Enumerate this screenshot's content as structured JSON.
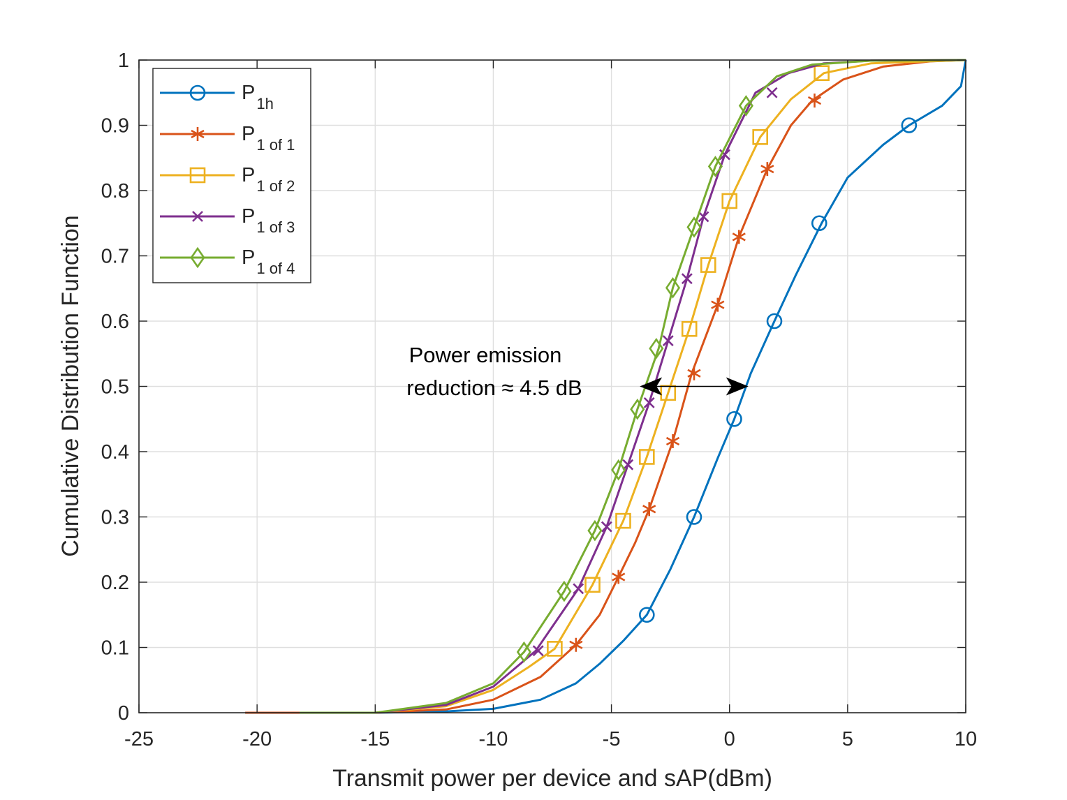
{
  "chart_data": {
    "type": "line",
    "xlabel": "Transmit power per device and sAP(dBm)",
    "ylabel": "Cumulative Distribution Function",
    "xlim": [
      -25,
      10
    ],
    "ylim": [
      0,
      1
    ],
    "grid": true,
    "x_ticks": [
      "-25",
      "-20",
      "-15",
      "-10",
      "-5",
      "0",
      "5",
      "10"
    ],
    "y_ticks": [
      "0",
      "0.1",
      "0.2",
      "0.3",
      "0.4",
      "0.5",
      "0.6",
      "0.7",
      "0.8",
      "0.9",
      "1"
    ],
    "legend_position": "top-left",
    "series": [
      {
        "name": "P 1h",
        "main": "P",
        "sub": "1h",
        "color": "#0072BD",
        "marker": "circle",
        "x": [
          -20.5,
          -15,
          -12,
          -10,
          -8,
          -6.5,
          -5.5,
          -4.5,
          -3.5,
          -2.5,
          -1.5,
          -0.5,
          0.2,
          0.9,
          1.9,
          2.8,
          3.9,
          5,
          6.5,
          7.6,
          9,
          9.8,
          10
        ],
        "y": [
          0,
          0,
          0.002,
          0.006,
          0.02,
          0.045,
          0.075,
          0.11,
          0.15,
          0.22,
          0.3,
          0.39,
          0.45,
          0.52,
          0.6,
          0.67,
          0.75,
          0.82,
          0.87,
          0.9,
          0.93,
          0.96,
          1.0
        ],
        "markers_x": [
          -3.5,
          -1.5,
          0.2,
          1.9,
          3.8,
          7.6
        ],
        "markers_y": [
          0.15,
          0.3,
          0.45,
          0.6,
          0.75,
          0.9
        ]
      },
      {
        "name": "P 1 of 1",
        "main": "P",
        "sub": "1 of 1",
        "color": "#D95319",
        "marker": "asterisk",
        "x": [
          -20.5,
          -15,
          -12,
          -10,
          -8,
          -6.5,
          -5.5,
          -4.7,
          -4,
          -3.4,
          -2.4,
          -1.6,
          -0.5,
          0.4,
          1.6,
          2.6,
          3.5,
          4.8,
          6.5,
          8.5,
          10
        ],
        "y": [
          0,
          0,
          0.005,
          0.02,
          0.055,
          0.104,
          0.15,
          0.208,
          0.26,
          0.312,
          0.416,
          0.52,
          0.625,
          0.729,
          0.833,
          0.9,
          0.938,
          0.97,
          0.99,
          0.998,
          1.0
        ],
        "markers_x": [
          -6.5,
          -4.7,
          -3.4,
          -2.4,
          -1.5,
          -0.5,
          0.4,
          1.6,
          3.6
        ],
        "markers_y": [
          0.104,
          0.208,
          0.312,
          0.416,
          0.52,
          0.625,
          0.729,
          0.833,
          0.938
        ]
      },
      {
        "name": "P 1 of 2",
        "main": "P",
        "sub": "1 of 2",
        "color": "#EDB120",
        "marker": "square",
        "x": [
          -18.2,
          -15,
          -12,
          -10,
          -8.5,
          -7.4,
          -5.8,
          -4.5,
          -3.5,
          -2.6,
          -1.7,
          -0.9,
          0,
          1.3,
          2.6,
          4,
          6,
          10
        ],
        "y": [
          0,
          0,
          0.01,
          0.035,
          0.07,
          0.098,
          0.196,
          0.294,
          0.392,
          0.49,
          0.588,
          0.686,
          0.784,
          0.882,
          0.94,
          0.98,
          0.995,
          1.0
        ],
        "markers_x": [
          -7.4,
          -5.8,
          -4.5,
          -3.5,
          -2.6,
          -1.7,
          -0.9,
          0,
          1.3,
          3.9
        ],
        "markers_y": [
          0.098,
          0.196,
          0.294,
          0.392,
          0.49,
          0.588,
          0.686,
          0.784,
          0.882,
          0.98
        ]
      },
      {
        "name": "P 1 of 3",
        "main": "P",
        "sub": "1 of 3",
        "color": "#7E2F8E",
        "marker": "cross",
        "x": [
          -18.2,
          -15,
          -12,
          -10,
          -8.2,
          -6.4,
          -5.2,
          -4.3,
          -3.4,
          -2.6,
          -1.8,
          -1.1,
          -0.2,
          1.1,
          2.5,
          4,
          6,
          10
        ],
        "y": [
          0,
          0,
          0.012,
          0.04,
          0.095,
          0.19,
          0.285,
          0.38,
          0.475,
          0.57,
          0.665,
          0.76,
          0.855,
          0.95,
          0.98,
          0.995,
          0.999,
          1.0
        ],
        "markers_x": [
          -8.1,
          -6.4,
          -5.2,
          -4.3,
          -3.4,
          -2.6,
          -1.8,
          -1.1,
          -0.2,
          1.8
        ],
        "markers_y": [
          0.095,
          0.19,
          0.285,
          0.38,
          0.475,
          0.57,
          0.665,
          0.76,
          0.855,
          0.95
        ]
      },
      {
        "name": "P 1 of 4",
        "main": "P",
        "sub": "1 of 4",
        "color": "#77AC30",
        "marker": "diamond",
        "x": [
          -18.2,
          -15,
          -12,
          -10,
          -8.7,
          -7,
          -5.7,
          -4.7,
          -3.9,
          -3,
          -2.4,
          -1.5,
          -0.6,
          0.7,
          2,
          3.5,
          6,
          10
        ],
        "y": [
          0,
          0,
          0.015,
          0.045,
          0.093,
          0.186,
          0.279,
          0.372,
          0.465,
          0.558,
          0.651,
          0.744,
          0.837,
          0.93,
          0.975,
          0.993,
          0.999,
          1.0
        ],
        "markers_x": [
          -8.7,
          -7,
          -5.7,
          -4.7,
          -3.9,
          -3.1,
          -2.4,
          -1.5,
          -0.6,
          0.7
        ],
        "markers_y": [
          0.093,
          0.186,
          0.279,
          0.372,
          0.465,
          0.558,
          0.651,
          0.744,
          0.837,
          0.93
        ]
      }
    ],
    "annotation": {
      "line1": "Power emission",
      "line2": "reduction ≈ 4.5 dB",
      "arrow_from_x": -3.8,
      "arrow_to_x": 0.8,
      "arrow_y": 0.5
    }
  }
}
